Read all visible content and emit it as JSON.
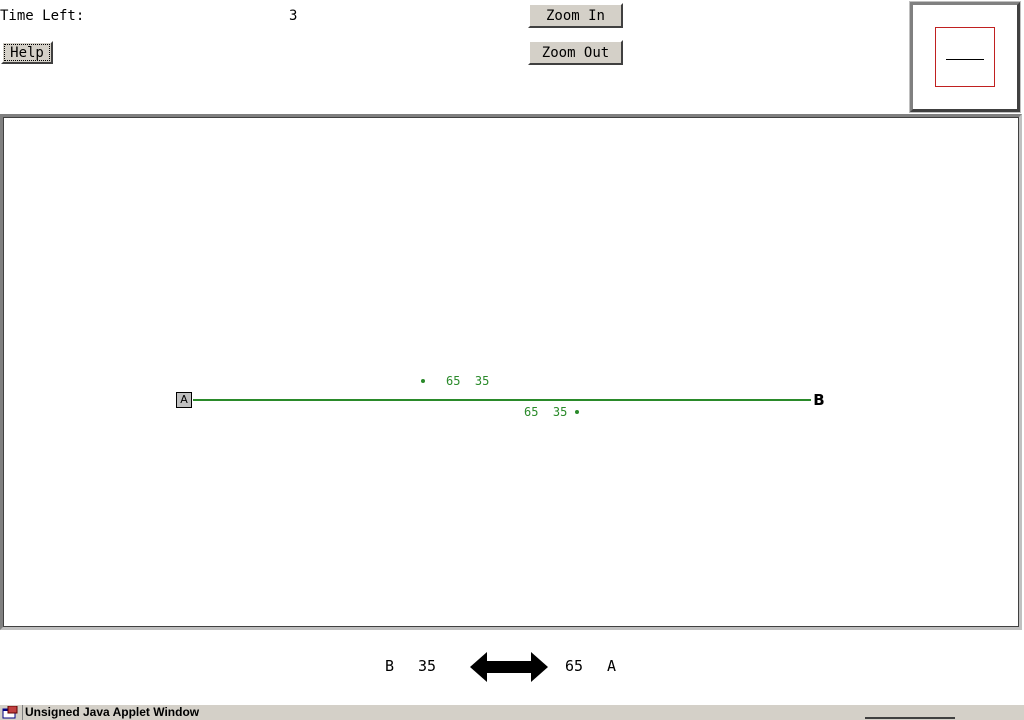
{
  "header": {
    "time_left_label": "Time Left:",
    "time_left_value": "3",
    "help_label": "Help",
    "zoom_in_label": "Zoom In",
    "zoom_out_label": "Zoom Out"
  },
  "graph": {
    "node_a_label": "A",
    "node_b_label": "B",
    "edge_color": "#2a8a2a",
    "edge_label_top": "65  35",
    "edge_label_bottom": "65  35"
  },
  "footer": {
    "left_node": "B",
    "left_value": "35",
    "right_value": "65",
    "right_node": "A",
    "arrow_icon": "double-arrow-icon"
  },
  "statusbar": {
    "text": "Unsigned Java Applet Window",
    "icon": "java-applet-icon"
  }
}
